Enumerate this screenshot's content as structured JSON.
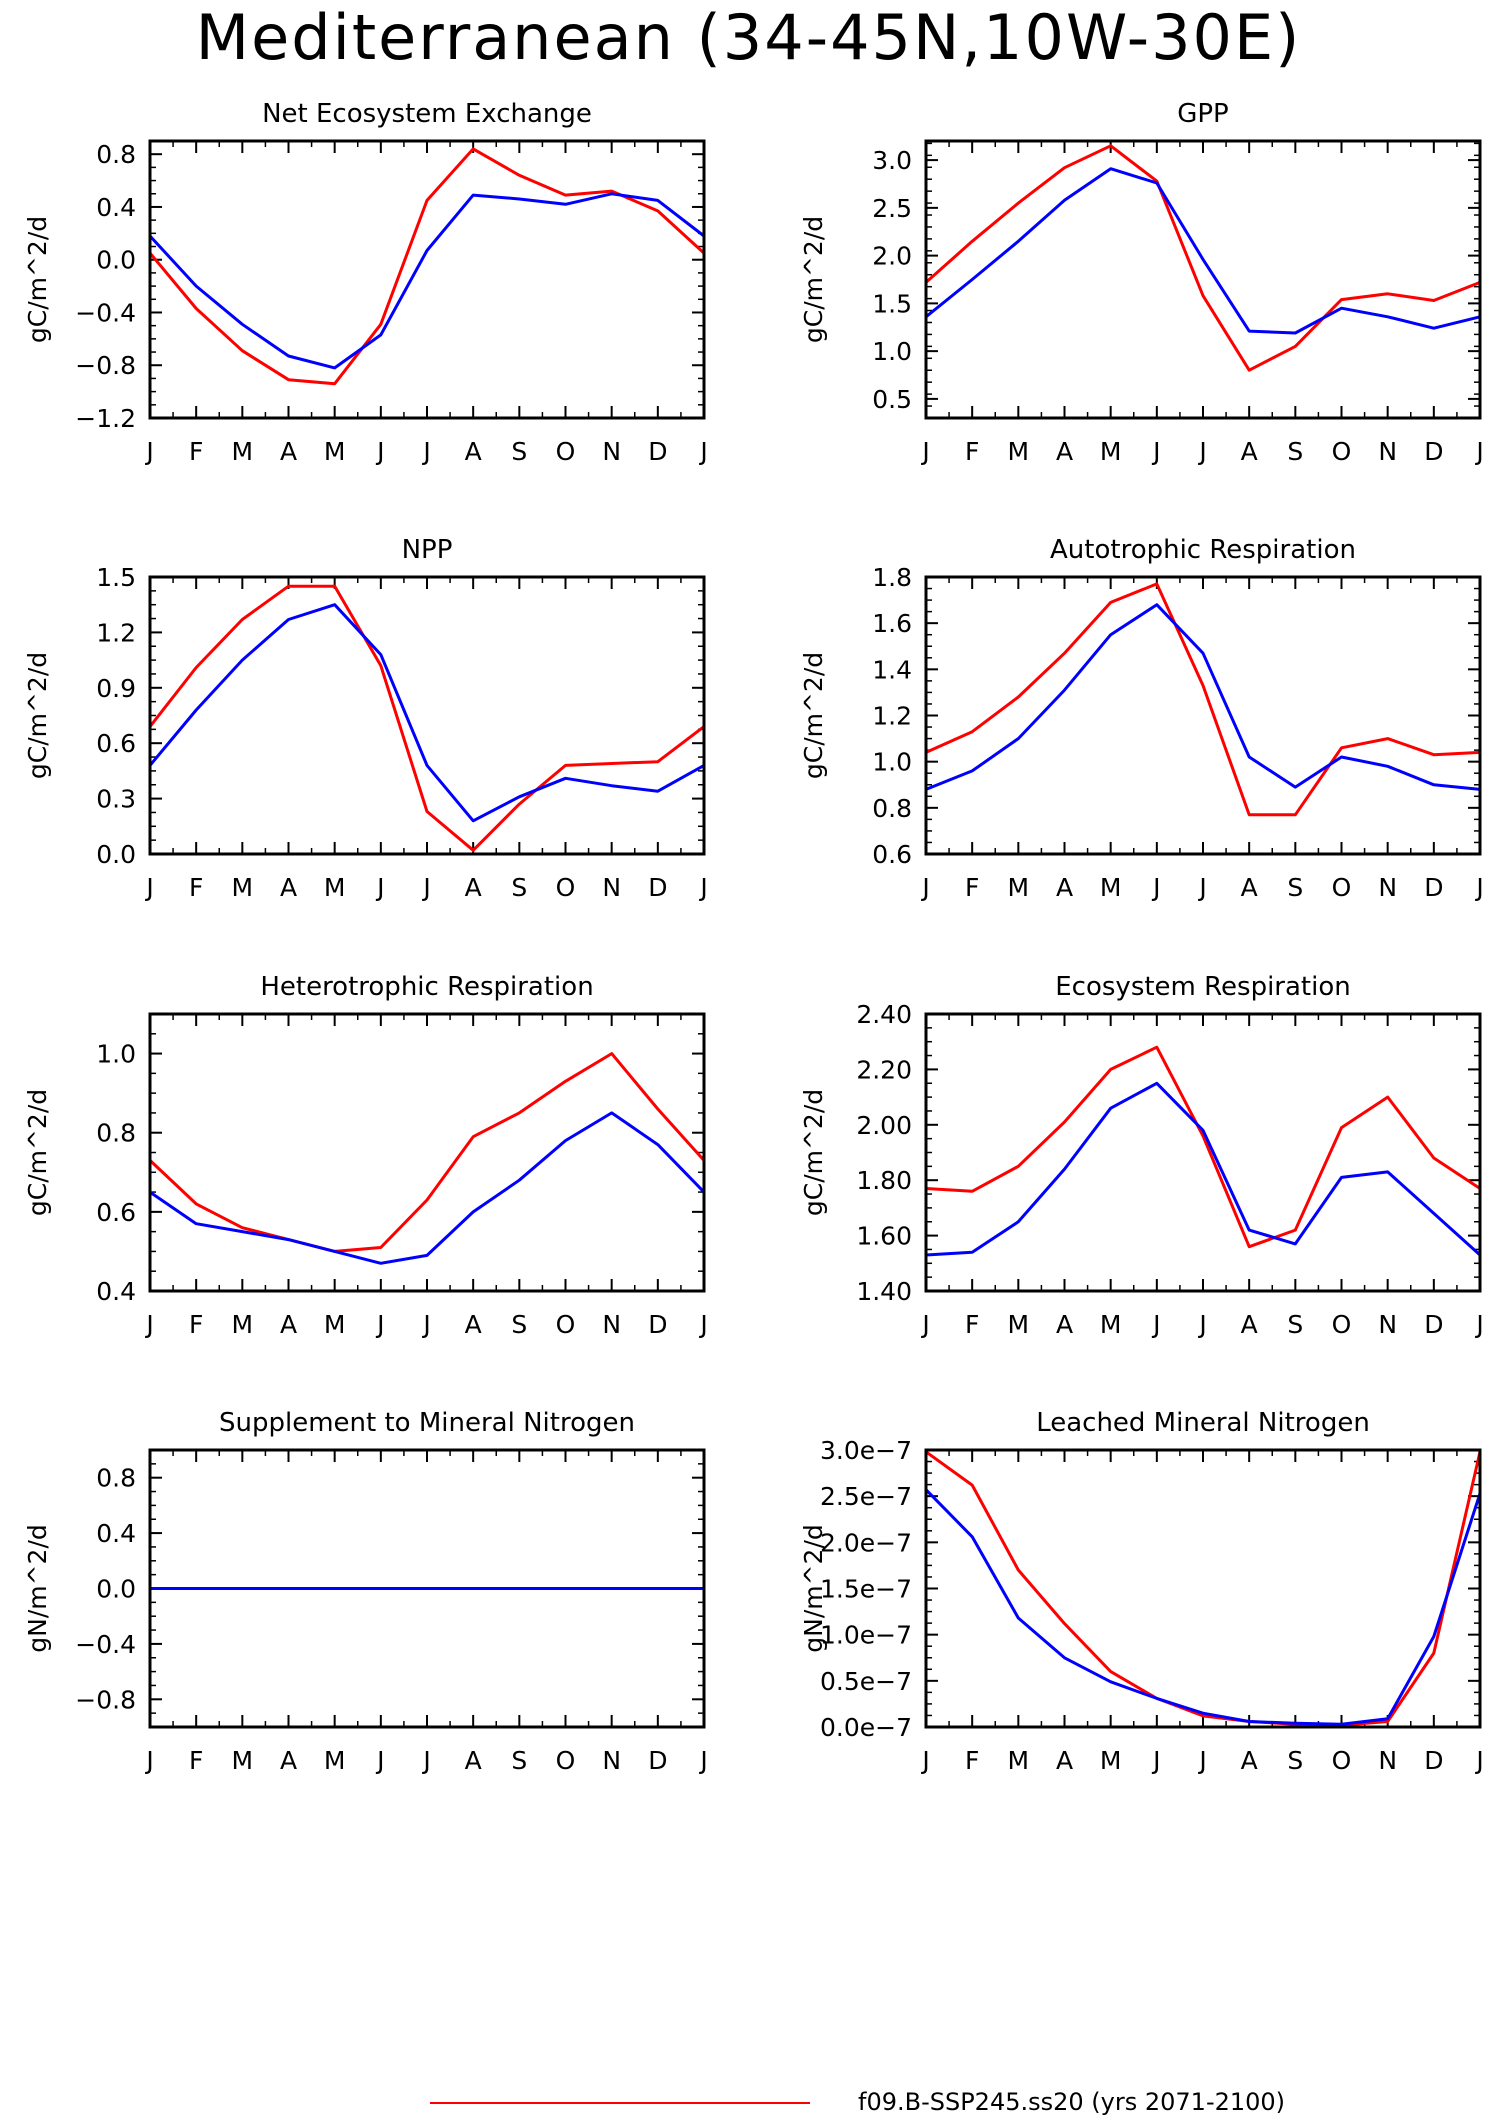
{
  "title": "Mediterranean (34-45N,10W-30E)",
  "legend": {
    "label": "f09.B-SSP245.ss20 (yrs 2071-2100)",
    "color": "#ff0000"
  },
  "months": [
    "J",
    "F",
    "M",
    "A",
    "M",
    "J",
    "J",
    "A",
    "S",
    "O",
    "N",
    "D",
    "J"
  ],
  "series_colors": [
    "#ff0000",
    "#0000ff"
  ],
  "chart_data": [
    {
      "type": "line",
      "title": "Net Ecosystem Exchange",
      "ylabel": "gC/m^2/d",
      "ylim": [
        -1.2,
        0.9
      ],
      "yticks": [
        -1.2,
        -0.8,
        -0.4,
        0.0,
        0.4,
        0.8
      ],
      "ytick_labels": [
        "−1.2",
        "−0.8",
        "−0.4",
        "0.0",
        "0.4",
        "0.8"
      ],
      "x": [
        "J",
        "F",
        "M",
        "A",
        "M",
        "J",
        "J",
        "A",
        "S",
        "O",
        "N",
        "D",
        "J"
      ],
      "series": [
        {
          "color": "#ff0000",
          "values": [
            0.05,
            -0.37,
            -0.69,
            -0.91,
            -0.94,
            -0.49,
            0.45,
            0.84,
            0.64,
            0.49,
            0.52,
            0.37,
            0.05
          ]
        },
        {
          "color": "#0000ff",
          "values": [
            0.18,
            -0.2,
            -0.49,
            -0.73,
            -0.82,
            -0.57,
            0.07,
            0.49,
            0.46,
            0.42,
            0.5,
            0.45,
            0.18
          ]
        }
      ]
    },
    {
      "type": "line",
      "title": "GPP",
      "ylabel": "gC/m^2/d",
      "ylim": [
        0.3,
        3.2
      ],
      "yticks": [
        0.5,
        1.0,
        1.5,
        2.0,
        2.5,
        3.0
      ],
      "ytick_labels": [
        "0.5",
        "1.0",
        "1.5",
        "2.0",
        "2.5",
        "3.0"
      ],
      "x": [
        "J",
        "F",
        "M",
        "A",
        "M",
        "J",
        "J",
        "A",
        "S",
        "O",
        "N",
        "D",
        "J"
      ],
      "series": [
        {
          "color": "#ff0000",
          "values": [
            1.72,
            2.15,
            2.55,
            2.92,
            3.15,
            2.78,
            1.58,
            0.8,
            1.05,
            1.54,
            1.6,
            1.53,
            1.72
          ]
        },
        {
          "color": "#0000ff",
          "values": [
            1.36,
            1.75,
            2.15,
            2.58,
            2.91,
            2.76,
            1.96,
            1.21,
            1.19,
            1.45,
            1.36,
            1.24,
            1.36
          ]
        }
      ]
    },
    {
      "type": "line",
      "title": "NPP",
      "ylabel": "gC/m^2/d",
      "ylim": [
        0.0,
        1.5
      ],
      "yticks": [
        0.0,
        0.3,
        0.6,
        0.9,
        1.2,
        1.5
      ],
      "ytick_labels": [
        "0.0",
        "0.3",
        "0.6",
        "0.9",
        "1.2",
        "1.5"
      ],
      "x": [
        "J",
        "F",
        "M",
        "A",
        "M",
        "J",
        "J",
        "A",
        "S",
        "O",
        "N",
        "D",
        "J"
      ],
      "series": [
        {
          "color": "#ff0000",
          "values": [
            0.69,
            1.01,
            1.27,
            1.45,
            1.45,
            1.02,
            0.23,
            0.02,
            0.27,
            0.48,
            0.49,
            0.5,
            0.69
          ]
        },
        {
          "color": "#0000ff",
          "values": [
            0.48,
            0.78,
            1.05,
            1.27,
            1.35,
            1.08,
            0.48,
            0.18,
            0.31,
            0.41,
            0.37,
            0.34,
            0.48
          ]
        }
      ]
    },
    {
      "type": "line",
      "title": "Autotrophic Respiration",
      "ylabel": "gC/m^2/d",
      "ylim": [
        0.6,
        1.8
      ],
      "yticks": [
        0.6,
        0.8,
        1.0,
        1.2,
        1.4,
        1.6,
        1.8
      ],
      "ytick_labels": [
        "0.6",
        "0.8",
        "1.0",
        "1.2",
        "1.4",
        "1.6",
        "1.8"
      ],
      "x": [
        "J",
        "F",
        "M",
        "A",
        "M",
        "J",
        "J",
        "A",
        "S",
        "O",
        "N",
        "D",
        "J"
      ],
      "series": [
        {
          "color": "#ff0000",
          "values": [
            1.04,
            1.13,
            1.28,
            1.47,
            1.69,
            1.77,
            1.33,
            0.77,
            0.77,
            1.06,
            1.1,
            1.03,
            1.04
          ]
        },
        {
          "color": "#0000ff",
          "values": [
            0.88,
            0.96,
            1.1,
            1.31,
            1.55,
            1.68,
            1.47,
            1.02,
            0.89,
            1.02,
            0.98,
            0.9,
            0.88
          ]
        }
      ]
    },
    {
      "type": "line",
      "title": "Heterotrophic Respiration",
      "ylabel": "gC/m^2/d",
      "ylim": [
        0.4,
        1.1
      ],
      "yticks": [
        0.4,
        0.6,
        0.8,
        1.0
      ],
      "ytick_labels": [
        "0.4",
        "0.6",
        "0.8",
        "1.0"
      ],
      "x": [
        "J",
        "F",
        "M",
        "A",
        "M",
        "J",
        "J",
        "A",
        "S",
        "O",
        "N",
        "D",
        "J"
      ],
      "series": [
        {
          "color": "#ff0000",
          "values": [
            0.73,
            0.62,
            0.56,
            0.53,
            0.5,
            0.51,
            0.63,
            0.79,
            0.85,
            0.93,
            1.0,
            0.86,
            0.73
          ]
        },
        {
          "color": "#0000ff",
          "values": [
            0.65,
            0.57,
            0.55,
            0.53,
            0.5,
            0.47,
            0.49,
            0.6,
            0.68,
            0.78,
            0.85,
            0.77,
            0.65
          ]
        }
      ]
    },
    {
      "type": "line",
      "title": "Ecosystem Respiration",
      "ylabel": "gC/m^2/d",
      "ylim": [
        1.4,
        2.4
      ],
      "yticks": [
        1.4,
        1.6,
        1.8,
        2.0,
        2.2,
        2.4
      ],
      "ytick_labels": [
        "1.40",
        "1.60",
        "1.80",
        "2.00",
        "2.20",
        "2.40"
      ],
      "x": [
        "J",
        "F",
        "M",
        "A",
        "M",
        "J",
        "J",
        "A",
        "S",
        "O",
        "N",
        "D",
        "J"
      ],
      "series": [
        {
          "color": "#ff0000",
          "values": [
            1.77,
            1.76,
            1.85,
            2.01,
            2.2,
            2.28,
            1.96,
            1.56,
            1.62,
            1.99,
            2.1,
            1.88,
            1.77
          ]
        },
        {
          "color": "#0000ff",
          "values": [
            1.53,
            1.54,
            1.65,
            1.84,
            2.06,
            2.15,
            1.98,
            1.62,
            1.57,
            1.81,
            1.83,
            1.68,
            1.53
          ]
        }
      ]
    },
    {
      "type": "line",
      "title": "Supplement to Mineral Nitrogen",
      "ylabel": "gN/m^2/d",
      "ylim": [
        -1.0,
        1.0
      ],
      "yticks": [
        -0.8,
        -0.4,
        0.0,
        0.4,
        0.8
      ],
      "ytick_labels": [
        "−0.8",
        "−0.4",
        "0.0",
        "0.4",
        "0.8"
      ],
      "x": [
        "J",
        "F",
        "M",
        "A",
        "M",
        "J",
        "J",
        "A",
        "S",
        "O",
        "N",
        "D",
        "J"
      ],
      "series": [
        {
          "color": "#ff0000",
          "values": [
            0,
            0,
            0,
            0,
            0,
            0,
            0,
            0,
            0,
            0,
            0,
            0,
            0
          ]
        },
        {
          "color": "#0000ff",
          "values": [
            0,
            0,
            0,
            0,
            0,
            0,
            0,
            0,
            0,
            0,
            0,
            0,
            0
          ]
        }
      ]
    },
    {
      "type": "line",
      "title": "Leached Mineral Nitrogen",
      "ylabel": "gN/m^2/d",
      "ylim": [
        0,
        3e-07
      ],
      "yticks": [
        0,
        5e-08,
        1e-07,
        1.5e-07,
        2e-07,
        2.5e-07,
        3e-07
      ],
      "ytick_labels": [
        "0.0e−7",
        "0.5e−7",
        "1.0e−7",
        "1.5e−7",
        "2.0e−7",
        "2.5e−7",
        "3.0e−7"
      ],
      "x": [
        "J",
        "F",
        "M",
        "A",
        "M",
        "J",
        "J",
        "A",
        "S",
        "O",
        "N",
        "D",
        "J"
      ],
      "series": [
        {
          "color": "#ff0000",
          "values": [
            2.98e-07,
            2.62e-07,
            1.7e-07,
            1.12e-07,
            6e-08,
            3.1e-08,
            1.2e-08,
            6e-09,
            3e-09,
            2e-09,
            6e-09,
            8e-08,
            2.98e-07
          ]
        },
        {
          "color": "#0000ff",
          "values": [
            2.57e-07,
            2.06e-07,
            1.18e-07,
            7.5e-08,
            4.9e-08,
            3.1e-08,
            1.5e-08,
            6e-09,
            4e-09,
            3e-09,
            9e-09,
            9.8e-08,
            2.53e-07
          ]
        }
      ]
    }
  ]
}
